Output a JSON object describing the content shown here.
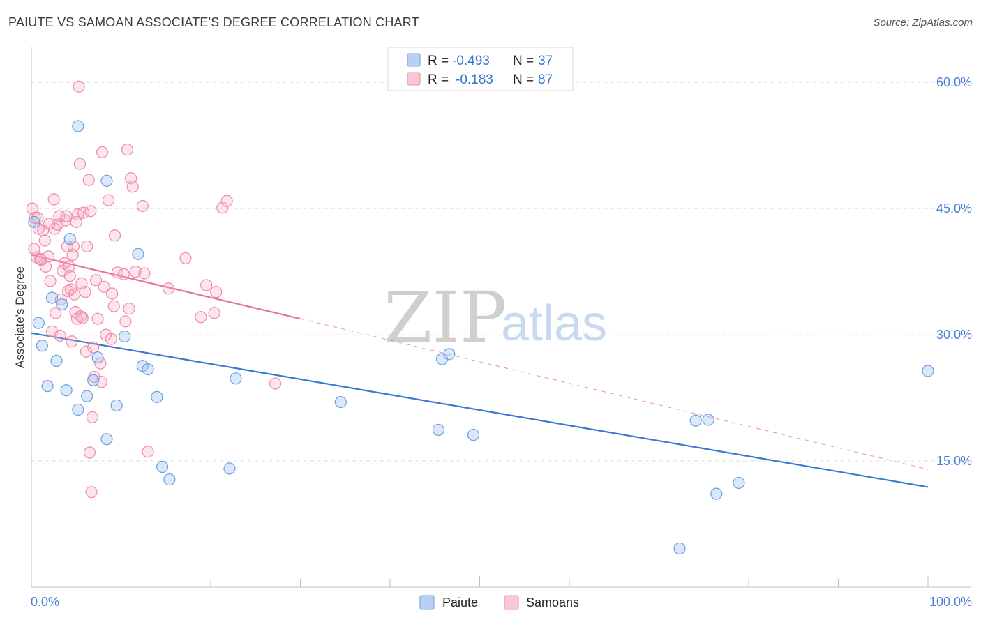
{
  "header": {
    "title": "PAIUTE VS SAMOAN ASSOCIATE'S DEGREE CORRELATION CHART",
    "source": "Source: ZipAtlas.com"
  },
  "legend": {
    "rows": [
      {
        "r_label": "R =",
        "r_value": "-0.493",
        "n_label": "N =",
        "n_value": "37",
        "color": "#6a9fe0"
      },
      {
        "r_label": "R =",
        "r_value": "-0.183",
        "n_label": "N =",
        "n_value": "87",
        "color": "#f08aa9"
      }
    ]
  },
  "bottom_legend": [
    {
      "label": "Paiute",
      "color": "#6a9fe0"
    },
    {
      "label": "Samoans",
      "color": "#f08aa9"
    }
  ],
  "watermark": {
    "zip": "ZIP",
    "atlas": "atlas"
  },
  "chart_data": {
    "type": "scatter",
    "title": "PAIUTE VS SAMOAN ASSOCIATE'S DEGREE CORRELATION CHART",
    "xlabel": "",
    "ylabel": "Associate's Degree",
    "xlim": [
      0,
      100
    ],
    "ylim": [
      0,
      63
    ],
    "x_tick_labels": [
      "0.0%",
      "100.0%"
    ],
    "y_ticks": [
      15,
      30,
      45,
      60
    ],
    "y_tick_labels": [
      "15.0%",
      "30.0%",
      "45.0%",
      "60.0%"
    ],
    "grid": true,
    "legend_position": "top-center",
    "series": [
      {
        "name": "Paiute",
        "color": "#6a9fe0",
        "points": [
          [
            0.3,
            43.4
          ],
          [
            0.8,
            31.4
          ],
          [
            1.2,
            28.7
          ],
          [
            1.8,
            23.9
          ],
          [
            2.3,
            34.4
          ],
          [
            2.8,
            26.9
          ],
          [
            3.4,
            33.6
          ],
          [
            3.9,
            23.4
          ],
          [
            4.3,
            41.4
          ],
          [
            5.2,
            21.1
          ],
          [
            5.2,
            54.8
          ],
          [
            6.2,
            22.7
          ],
          [
            6.9,
            24.6
          ],
          [
            7.4,
            27.3
          ],
          [
            8.4,
            17.6
          ],
          [
            8.4,
            48.3
          ],
          [
            9.5,
            21.6
          ],
          [
            10.4,
            29.8
          ],
          [
            11.9,
            39.6
          ],
          [
            12.4,
            26.3
          ],
          [
            13.0,
            25.9
          ],
          [
            14.0,
            22.6
          ],
          [
            14.6,
            14.3
          ],
          [
            15.4,
            12.8
          ],
          [
            22.1,
            14.1
          ],
          [
            22.8,
            24.8
          ],
          [
            34.5,
            22.0
          ],
          [
            45.4,
            18.7
          ],
          [
            45.8,
            27.1
          ],
          [
            46.6,
            27.7
          ],
          [
            49.3,
            18.1
          ],
          [
            74.1,
            19.8
          ],
          [
            75.5,
            19.9
          ],
          [
            76.4,
            11.1
          ],
          [
            78.9,
            12.4
          ],
          [
            72.3,
            4.6
          ],
          [
            100.0,
            25.7
          ]
        ],
        "trend": {
          "x": [
            0,
            100
          ],
          "y": [
            30.2,
            11.9
          ]
        }
      },
      {
        "name": "Samoans",
        "color": "#f08aa9",
        "points": [
          [
            0.1,
            45.0
          ],
          [
            0.3,
            40.2
          ],
          [
            0.4,
            43.9
          ],
          [
            0.6,
            39.2
          ],
          [
            0.8,
            42.6
          ],
          [
            1.1,
            38.9
          ],
          [
            1.3,
            42.4
          ],
          [
            1.6,
            38.1
          ],
          [
            1.9,
            39.3
          ],
          [
            2.1,
            36.4
          ],
          [
            2.3,
            30.4
          ],
          [
            2.5,
            46.1
          ],
          [
            2.6,
            42.6
          ],
          [
            2.7,
            32.6
          ],
          [
            2.9,
            43.1
          ],
          [
            3.1,
            44.1
          ],
          [
            3.2,
            29.9
          ],
          [
            3.3,
            34.2
          ],
          [
            3.5,
            37.6
          ],
          [
            3.7,
            38.5
          ],
          [
            3.8,
            43.6
          ],
          [
            3.9,
            44.1
          ],
          [
            4.0,
            40.5
          ],
          [
            4.1,
            35.2
          ],
          [
            4.2,
            38.1
          ],
          [
            4.3,
            37.0
          ],
          [
            4.4,
            35.4
          ],
          [
            4.5,
            29.2
          ],
          [
            4.6,
            39.5
          ],
          [
            4.7,
            40.5
          ],
          [
            4.8,
            34.8
          ],
          [
            4.9,
            32.7
          ],
          [
            5.0,
            43.4
          ],
          [
            5.1,
            31.9
          ],
          [
            5.2,
            44.3
          ],
          [
            5.3,
            59.5
          ],
          [
            5.4,
            50.3
          ],
          [
            5.5,
            32.2
          ],
          [
            5.6,
            36.1
          ],
          [
            5.8,
            44.5
          ],
          [
            6.0,
            35.1
          ],
          [
            6.2,
            40.5
          ],
          [
            6.4,
            48.4
          ],
          [
            6.5,
            16.0
          ],
          [
            6.6,
            44.7
          ],
          [
            6.7,
            11.3
          ],
          [
            6.8,
            20.2
          ],
          [
            6.9,
            28.5
          ],
          [
            7.0,
            25.0
          ],
          [
            7.2,
            36.5
          ],
          [
            7.4,
            31.9
          ],
          [
            7.7,
            26.6
          ],
          [
            7.8,
            24.4
          ],
          [
            7.9,
            51.7
          ],
          [
            8.1,
            35.7
          ],
          [
            8.6,
            46.0
          ],
          [
            8.9,
            29.5
          ],
          [
            9.0,
            34.9
          ],
          [
            9.2,
            33.4
          ],
          [
            9.3,
            41.8
          ],
          [
            9.6,
            37.4
          ],
          [
            10.3,
            37.2
          ],
          [
            10.5,
            31.6
          ],
          [
            10.7,
            52.0
          ],
          [
            10.9,
            33.1
          ],
          [
            11.1,
            48.6
          ],
          [
            11.3,
            47.6
          ],
          [
            11.6,
            37.5
          ],
          [
            12.4,
            45.3
          ],
          [
            12.6,
            37.3
          ],
          [
            13.0,
            16.1
          ],
          [
            15.3,
            35.5
          ],
          [
            17.2,
            39.1
          ],
          [
            18.9,
            32.1
          ],
          [
            19.5,
            35.9
          ],
          [
            20.4,
            32.6
          ],
          [
            20.6,
            35.1
          ],
          [
            21.3,
            45.1
          ],
          [
            21.8,
            45.9
          ],
          [
            27.2,
            24.2
          ],
          [
            1.5,
            41.2
          ],
          [
            2.0,
            43.2
          ],
          [
            0.7,
            43.9
          ],
          [
            1.0,
            39.0
          ],
          [
            5.7,
            32.0
          ],
          [
            6.1,
            28.0
          ],
          [
            8.3,
            30.0
          ]
        ],
        "trend_solid": {
          "x": [
            0,
            30
          ],
          "y": [
            39.5,
            31.9
          ]
        },
        "trend_dashed": {
          "x": [
            30,
            100
          ],
          "y": [
            31.9,
            14.0
          ]
        }
      }
    ]
  }
}
